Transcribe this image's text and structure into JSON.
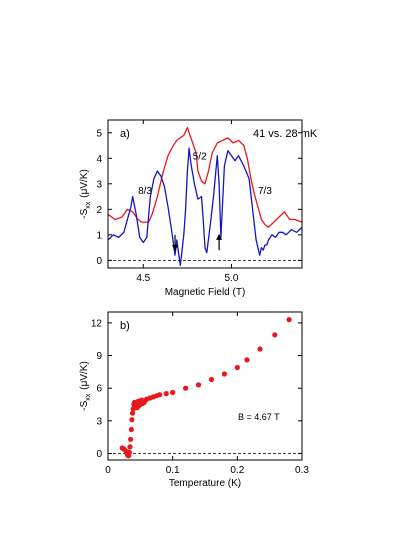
{
  "chart_data": [
    {
      "panel_label": "a)",
      "type": "line",
      "annotation": "41 vs. 28 mK",
      "state_labels": [
        {
          "text": "8/3",
          "x": 4.51,
          "y": 2.6
        },
        {
          "text": "5/2",
          "x": 4.82,
          "y": 3.95
        },
        {
          "text": "7/3",
          "x": 5.19,
          "y": 2.6
        }
      ],
      "arrows": [
        {
          "x": 4.68,
          "direction": "down",
          "y_top": 1.0,
          "y_bottom": 0.4
        },
        {
          "x": 4.93,
          "direction": "up",
          "y_top": 1.0,
          "y_bottom": 0.4
        }
      ],
      "xlabel": "Magnetic Field (T)",
      "ylabel_main": "-S",
      "ylabel_sub": "xx",
      "ylabel_unit": "(μV/K)",
      "xlim": [
        4.3,
        5.4
      ],
      "ylim": [
        -0.3,
        5.5
      ],
      "xticks": [
        4.5,
        5.0
      ],
      "xtick_labels": [
        "4.5",
        "5.0"
      ],
      "yticks": [
        0,
        1,
        2,
        3,
        4,
        5
      ],
      "ytick_labels": [
        "0",
        "1",
        "2",
        "3",
        "4",
        "5"
      ],
      "zero_line": "dashed",
      "series": [
        {
          "color": "#e8191c",
          "x": [
            4.3,
            4.34,
            4.38,
            4.41,
            4.44,
            4.47,
            4.49,
            4.51,
            4.53,
            4.55,
            4.58,
            4.61,
            4.64,
            4.67,
            4.69,
            4.71,
            4.73,
            4.75,
            4.76,
            4.78,
            4.8,
            4.81,
            4.83,
            4.85,
            4.87,
            4.89,
            4.92,
            4.95,
            4.98,
            5.01,
            5.04,
            5.07,
            5.09,
            5.11,
            5.13,
            5.15,
            5.17,
            5.19,
            5.21,
            5.24,
            5.27,
            5.3,
            5.33,
            5.36,
            5.4
          ],
          "y": [
            1.8,
            1.6,
            1.7,
            2.0,
            1.9,
            1.6,
            1.5,
            1.5,
            1.5,
            1.8,
            2.5,
            3.4,
            4.1,
            4.5,
            4.7,
            4.8,
            4.9,
            5.2,
            5.0,
            4.6,
            4.2,
            3.5,
            3.1,
            3.0,
            3.5,
            4.2,
            4.6,
            4.7,
            4.8,
            4.6,
            4.7,
            4.5,
            4.0,
            3.2,
            2.6,
            2.1,
            1.6,
            1.4,
            1.3,
            1.5,
            1.7,
            1.9,
            1.6,
            1.6,
            1.5
          ]
        },
        {
          "color": "#1414c8",
          "x": [
            4.3,
            4.33,
            4.36,
            4.39,
            4.41,
            4.43,
            4.44,
            4.46,
            4.48,
            4.5,
            4.52,
            4.54,
            4.56,
            4.58,
            4.6,
            4.62,
            4.64,
            4.66,
            4.68,
            4.69,
            4.7,
            4.71,
            4.72,
            4.73,
            4.74,
            4.75,
            4.76,
            4.77,
            4.79,
            4.81,
            4.83,
            4.84,
            4.85,
            4.86,
            4.88,
            4.9,
            4.91,
            4.92,
            4.93,
            4.94,
            4.96,
            4.98,
            5.0,
            5.02,
            5.04,
            5.07,
            5.1,
            5.12,
            5.14,
            5.16,
            5.17,
            5.18,
            5.19,
            5.2,
            5.21,
            5.23,
            5.25,
            5.27,
            5.29,
            5.31,
            5.34,
            5.37,
            5.4
          ],
          "y": [
            0.8,
            1.0,
            0.9,
            1.1,
            1.6,
            2.1,
            2.5,
            1.8,
            0.9,
            0.7,
            0.9,
            2.5,
            3.2,
            3.5,
            3.3,
            2.9,
            2.1,
            1.2,
            0.2,
            0.8,
            0.3,
            -0.2,
            0.4,
            1.0,
            2.0,
            3.5,
            4.4,
            3.8,
            3.0,
            2.4,
            2.5,
            1.6,
            0.5,
            0.3,
            1.4,
            2.6,
            3.4,
            4.1,
            3.0,
            0.9,
            3.7,
            4.3,
            4.1,
            3.9,
            4.1,
            3.7,
            3.2,
            2.0,
            0.8,
            0.2,
            0.5,
            0.4,
            0.6,
            0.6,
            0.8,
            1.0,
            0.9,
            1.1,
            1.1,
            1.0,
            1.2,
            1.1,
            1.3
          ]
        }
      ]
    },
    {
      "panel_label": "b)",
      "type": "scatter",
      "annotation": "B = 4.67 T",
      "xlabel": "Temperature (K)",
      "ylabel_main": "-S",
      "ylabel_sub": "xx",
      "ylabel_unit": "(μV/K)",
      "xlim": [
        0,
        0.3
      ],
      "ylim": [
        -0.6,
        13
      ],
      "xticks": [
        0,
        0.1,
        0.2,
        0.3
      ],
      "xtick_labels": [
        "0",
        "0.1",
        "0.2",
        "0.3"
      ],
      "yticks": [
        0,
        3,
        6,
        9,
        12
      ],
      "ytick_labels": [
        "0",
        "3",
        "6",
        "9",
        "12"
      ],
      "zero_line": "dashed",
      "series": [
        {
          "color": "#e8191c",
          "x": [
            0.022,
            0.025,
            0.028,
            0.03,
            0.031,
            0.032,
            0.033,
            0.034,
            0.035,
            0.036,
            0.037,
            0.038,
            0.039,
            0.04,
            0.041,
            0.042,
            0.043,
            0.044,
            0.045,
            0.046,
            0.047,
            0.048,
            0.05,
            0.052,
            0.054,
            0.056,
            0.058,
            0.06,
            0.065,
            0.07,
            0.075,
            0.08,
            0.09,
            0.1,
            0.12,
            0.14,
            0.16,
            0.18,
            0.2,
            0.215,
            0.235,
            0.258,
            0.28
          ],
          "y": [
            0.5,
            0.4,
            0.2,
            -0.1,
            -0.2,
            -0.2,
            0.1,
            0.6,
            1.3,
            2.2,
            3.1,
            3.7,
            4.1,
            4.5,
            4.7,
            4.3,
            4.6,
            4.7,
            4.2,
            4.6,
            4.8,
            4.4,
            4.5,
            4.9,
            4.6,
            4.7,
            4.9,
            5.0,
            5.1,
            5.2,
            5.3,
            5.4,
            5.5,
            5.6,
            6.0,
            6.3,
            6.8,
            7.3,
            7.9,
            8.6,
            9.6,
            10.9,
            12.3
          ]
        }
      ]
    }
  ]
}
